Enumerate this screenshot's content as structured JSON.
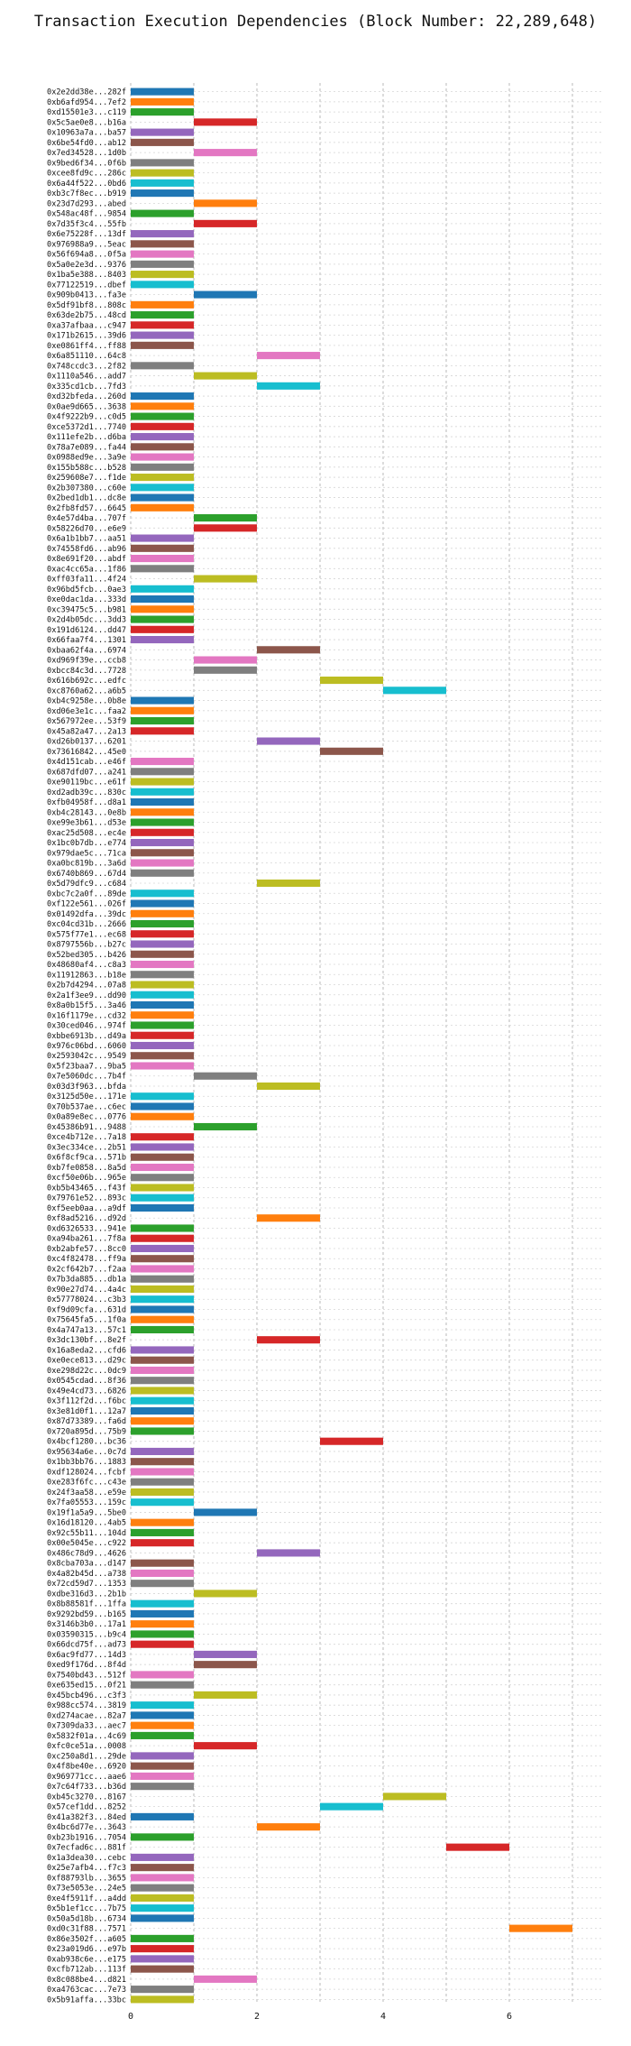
{
  "chart_data": {
    "type": "bar",
    "orientation": "horizontal",
    "title": "Transaction Execution Dependencies (Block Number: 22,289,648)",
    "xlabel": "",
    "ylabel": "",
    "xlim": [
      0,
      7.5
    ],
    "xticks": [
      "0",
      "2",
      "4",
      "6"
    ],
    "xtick_values": [
      0,
      2,
      4,
      6
    ],
    "grid": true,
    "palette": [
      "#1f77b4",
      "#ff7f0e",
      "#2ca02c",
      "#d62728",
      "#9467bd",
      "#8c564b",
      "#e377c2",
      "#7f7f7f",
      "#bcbd22",
      "#17becf"
    ],
    "transactions": [
      {
        "label": "0x2e2dd38e...282f",
        "start": 0
      },
      {
        "label": "0xb6afd954...7ef2",
        "start": 0
      },
      {
        "label": "0xd15501e3...c119",
        "start": 0
      },
      {
        "label": "0x5c5ae0e8...b16a",
        "start": 1
      },
      {
        "label": "0x10963a7a...ba57",
        "start": 0
      },
      {
        "label": "0x6be54fd0...ab12",
        "start": 0
      },
      {
        "label": "0x7ed34528...1d0b",
        "start": 1
      },
      {
        "label": "0x9bed6f34...0f6b",
        "start": 0
      },
      {
        "label": "0xcee8fd9c...286c",
        "start": 0
      },
      {
        "label": "0x6a44f522...0bd6",
        "start": 0
      },
      {
        "label": "0xb3c7f8ec...b919",
        "start": 0
      },
      {
        "label": "0x23d7d293...abed",
        "start": 1
      },
      {
        "label": "0x548ac48f...9854",
        "start": 0
      },
      {
        "label": "0x7d35f3c4...55fb",
        "start": 1
      },
      {
        "label": "0x6e75228f...13df",
        "start": 0
      },
      {
        "label": "0x976988a9...5eac",
        "start": 0
      },
      {
        "label": "0x56f694a8...0f5a",
        "start": 0
      },
      {
        "label": "0x5a0e2e3d...9376",
        "start": 0
      },
      {
        "label": "0x1ba5e388...8403",
        "start": 0
      },
      {
        "label": "0x77122519...dbef",
        "start": 0
      },
      {
        "label": "0x909b0413...fa3e",
        "start": 1
      },
      {
        "label": "0x5df91bf8...808c",
        "start": 0
      },
      {
        "label": "0x63de2b75...48cd",
        "start": 0
      },
      {
        "label": "0xa37afbaa...c947",
        "start": 0
      },
      {
        "label": "0x171b2615...39d6",
        "start": 0
      },
      {
        "label": "0xe0861ff4...ff88",
        "start": 0
      },
      {
        "label": "0x6a851110...64c8",
        "start": 2
      },
      {
        "label": "0x748ccdc3...2f82",
        "start": 0
      },
      {
        "label": "0x1110a546...add7",
        "start": 1
      },
      {
        "label": "0x335cd1cb...7fd3",
        "start": 2
      },
      {
        "label": "0xd32bfeda...260d",
        "start": 0
      },
      {
        "label": "0x0ae9d665...3638",
        "start": 0
      },
      {
        "label": "0x4f9222b9...c0d5",
        "start": 0
      },
      {
        "label": "0xce5372d1...7740",
        "start": 0
      },
      {
        "label": "0x111efe2b...d6ba",
        "start": 0
      },
      {
        "label": "0x78a7e089...fa44",
        "start": 0
      },
      {
        "label": "0x0988ed9e...3a9e",
        "start": 0
      },
      {
        "label": "0x155b588c...b528",
        "start": 0
      },
      {
        "label": "0x259608e7...f1de",
        "start": 0
      },
      {
        "label": "0x2b307380...c60e",
        "start": 0
      },
      {
        "label": "0x2bed1db1...dc8e",
        "start": 0
      },
      {
        "label": "0x2fb8fd57...6645",
        "start": 0
      },
      {
        "label": "0x4e57d4ba...707f",
        "start": 1
      },
      {
        "label": "0x58226d70...e6e9",
        "start": 1
      },
      {
        "label": "0x6a1b1bb7...aa51",
        "start": 0
      },
      {
        "label": "0x74558fd6...ab96",
        "start": 0
      },
      {
        "label": "0x8e691f20...abdf",
        "start": 0
      },
      {
        "label": "0xac4cc65a...1f86",
        "start": 0
      },
      {
        "label": "0xff03fa11...4f24",
        "start": 1
      },
      {
        "label": "0x96bd5fcb...0ae3",
        "start": 0
      },
      {
        "label": "0xe0dac1da...333d",
        "start": 0
      },
      {
        "label": "0xc39475c5...b981",
        "start": 0
      },
      {
        "label": "0x2d4b05dc...3dd3",
        "start": 0
      },
      {
        "label": "0x191d6124...dd47",
        "start": 0
      },
      {
        "label": "0x66faa7f4...1301",
        "start": 0
      },
      {
        "label": "0xbaa62f4a...6974",
        "start": 2
      },
      {
        "label": "0xd969f39e...ccb8",
        "start": 1
      },
      {
        "label": "0xbcc84c3d...7728",
        "start": 1
      },
      {
        "label": "0x616b692c...edfc",
        "start": 3
      },
      {
        "label": "0xc8760a62...a6b5",
        "start": 4
      },
      {
        "label": "0xb4c9258e...0b8e",
        "start": 0
      },
      {
        "label": "0xd06e3e1c...faa2",
        "start": 0
      },
      {
        "label": "0x567972ee...53f9",
        "start": 0
      },
      {
        "label": "0x45a82a47...2a13",
        "start": 0
      },
      {
        "label": "0xd26b0137...6201",
        "start": 2
      },
      {
        "label": "0x73616842...45e0",
        "start": 3
      },
      {
        "label": "0x4d151cab...e46f",
        "start": 0
      },
      {
        "label": "0x687dfd07...a241",
        "start": 0
      },
      {
        "label": "0xe90119bc...e61f",
        "start": 0
      },
      {
        "label": "0xd2adb39c...830c",
        "start": 0
      },
      {
        "label": "0xfb04958f...d8a1",
        "start": 0
      },
      {
        "label": "0xb4c28143...0e8b",
        "start": 0
      },
      {
        "label": "0xe99e3b61...d53e",
        "start": 0
      },
      {
        "label": "0xac25d508...ec4e",
        "start": 0
      },
      {
        "label": "0x1bc0b7db...e774",
        "start": 0
      },
      {
        "label": "0x979dae5c...71ca",
        "start": 0
      },
      {
        "label": "0xa0bc819b...3a6d",
        "start": 0
      },
      {
        "label": "0x6740b869...67d4",
        "start": 0
      },
      {
        "label": "0x5d79dfc9...c684",
        "start": 2
      },
      {
        "label": "0xbc7c2a0f...89de",
        "start": 0
      },
      {
        "label": "0xf122e561...026f",
        "start": 0
      },
      {
        "label": "0x01492dfa...39dc",
        "start": 0
      },
      {
        "label": "0xc04cd31b...2666",
        "start": 0
      },
      {
        "label": "0x575f77e1...ec68",
        "start": 0
      },
      {
        "label": "0x8797556b...b27c",
        "start": 0
      },
      {
        "label": "0x52bed305...b426",
        "start": 0
      },
      {
        "label": "0x48680af4...c8a3",
        "start": 0
      },
      {
        "label": "0x11912863...b18e",
        "start": 0
      },
      {
        "label": "0x2b7d4294...07a8",
        "start": 0
      },
      {
        "label": "0x2a1f3ee9...dd90",
        "start": 0
      },
      {
        "label": "0x8a0b15f5...3a46",
        "start": 0
      },
      {
        "label": "0x16f1179e...cd32",
        "start": 0
      },
      {
        "label": "0x30ced046...974f",
        "start": 0
      },
      {
        "label": "0xbbe6913b...d49a",
        "start": 0
      },
      {
        "label": "0x976c06bd...6060",
        "start": 0
      },
      {
        "label": "0x2593042c...9549",
        "start": 0
      },
      {
        "label": "0x5f23baa7...9ba5",
        "start": 0
      },
      {
        "label": "0x7e5060dc...7b4f",
        "start": 1
      },
      {
        "label": "0x03d3f963...bfda",
        "start": 2
      },
      {
        "label": "0x3125d50e...171e",
        "start": 0
      },
      {
        "label": "0x70b537ae...c6ec",
        "start": 0
      },
      {
        "label": "0x0a89e8ec...0776",
        "start": 0
      },
      {
        "label": "0x45386b91...9488",
        "start": 1
      },
      {
        "label": "0xce4b712e...7a18",
        "start": 0
      },
      {
        "label": "0x3ec334ce...2b51",
        "start": 0
      },
      {
        "label": "0x6f8cf9ca...571b",
        "start": 0
      },
      {
        "label": "0xb7fe0858...8a5d",
        "start": 0
      },
      {
        "label": "0xcf50e06b...965e",
        "start": 0
      },
      {
        "label": "0xb5b43465...f43f",
        "start": 0
      },
      {
        "label": "0x79761e52...893c",
        "start": 0
      },
      {
        "label": "0xf5eeb0aa...a9df",
        "start": 0
      },
      {
        "label": "0xf8ad5216...d92d",
        "start": 2
      },
      {
        "label": "0xd6326533...941e",
        "start": 0
      },
      {
        "label": "0xa94ba261...7f8a",
        "start": 0
      },
      {
        "label": "0xb2abfe57...8cc0",
        "start": 0
      },
      {
        "label": "0xc4f82478...ff9a",
        "start": 0
      },
      {
        "label": "0x2cf642b7...f2aa",
        "start": 0
      },
      {
        "label": "0x7b3da885...db1a",
        "start": 0
      },
      {
        "label": "0x90e27d74...4a4c",
        "start": 0
      },
      {
        "label": "0x57778024...c3b3",
        "start": 0
      },
      {
        "label": "0xf9d09cfa...631d",
        "start": 0
      },
      {
        "label": "0x75645fa5...1f0a",
        "start": 0
      },
      {
        "label": "0x4a747a13...57c1",
        "start": 0
      },
      {
        "label": "0x3dc130bf...8e2f",
        "start": 2
      },
      {
        "label": "0x16a8eda2...cfd6",
        "start": 0
      },
      {
        "label": "0xe0ece813...d29c",
        "start": 0
      },
      {
        "label": "0xe298d22c...0dc9",
        "start": 0
      },
      {
        "label": "0x0545cdad...8f36",
        "start": 0
      },
      {
        "label": "0x49e4cd73...6826",
        "start": 0
      },
      {
        "label": "0x3f112f2d...f6bc",
        "start": 0
      },
      {
        "label": "0x3e81d0f1...12a7",
        "start": 0
      },
      {
        "label": "0x87d73389...fa6d",
        "start": 0
      },
      {
        "label": "0x720a895d...75b9",
        "start": 0
      },
      {
        "label": "0x4bcf1280...bc36",
        "start": 3
      },
      {
        "label": "0x95634a6e...0c7d",
        "start": 0
      },
      {
        "label": "0x1bb3bb76...1883",
        "start": 0
      },
      {
        "label": "0xdf128024...fcbf",
        "start": 0
      },
      {
        "label": "0xe283f6fc...c43e",
        "start": 0
      },
      {
        "label": "0x24f3aa58...e59e",
        "start": 0
      },
      {
        "label": "0x7fa05553...159c",
        "start": 0
      },
      {
        "label": "0x19f1a5a9...5be0",
        "start": 1
      },
      {
        "label": "0x16d18120...4ab5",
        "start": 0
      },
      {
        "label": "0x92c55b11...104d",
        "start": 0
      },
      {
        "label": "0x00e5045e...c922",
        "start": 0
      },
      {
        "label": "0x486c78d9...4626",
        "start": 2
      },
      {
        "label": "0x8cba703a...d147",
        "start": 0
      },
      {
        "label": "0x4a82b45d...a738",
        "start": 0
      },
      {
        "label": "0x72cd59d7...1353",
        "start": 0
      },
      {
        "label": "0xdbe316d3...2b1b",
        "start": 1
      },
      {
        "label": "0x8b88581f...1ffa",
        "start": 0
      },
      {
        "label": "0x9292bd59...b165",
        "start": 0
      },
      {
        "label": "0x3146b3b0...17a1",
        "start": 0
      },
      {
        "label": "0x03590315...b9c4",
        "start": 0
      },
      {
        "label": "0x66dcd75f...ad73",
        "start": 0
      },
      {
        "label": "0x6ac9fd77...14d3",
        "start": 1
      },
      {
        "label": "0xed9f176d...8f4d",
        "start": 1
      },
      {
        "label": "0x7540bd43...512f",
        "start": 0
      },
      {
        "label": "0xe635ed15...0f21",
        "start": 0
      },
      {
        "label": "0x45bcb496...c3f3",
        "start": 1
      },
      {
        "label": "0x988cc574...3819",
        "start": 0
      },
      {
        "label": "0xd274acae...82a7",
        "start": 0
      },
      {
        "label": "0x7309da33...aec7",
        "start": 0
      },
      {
        "label": "0x5832f01a...4c69",
        "start": 0
      },
      {
        "label": "0xfc0ce51a...0008",
        "start": 1
      },
      {
        "label": "0xc250a8d1...29de",
        "start": 0
      },
      {
        "label": "0x4f8be40e...6920",
        "start": 0
      },
      {
        "label": "0x969771cc...aae6",
        "start": 0
      },
      {
        "label": "0x7c64f733...b36d",
        "start": 0
      },
      {
        "label": "0xb45c3270...8167",
        "start": 4
      },
      {
        "label": "0x57cef1dd...8252",
        "start": 3
      },
      {
        "label": "0x41a382f3...84ed",
        "start": 0
      },
      {
        "label": "0x4bc6d77e...3643",
        "start": 2
      },
      {
        "label": "0xb23b1916...7054",
        "start": 0
      },
      {
        "label": "0x7ecfad6c...881f",
        "start": 5
      },
      {
        "label": "0x1a3dea30...cebc",
        "start": 0
      },
      {
        "label": "0x25e7afb4...f7c3",
        "start": 0
      },
      {
        "label": "0xf88793lb...3655",
        "start": 0
      },
      {
        "label": "0x73e5053e...24e5",
        "start": 0
      },
      {
        "label": "0xe4f5911f...a4dd",
        "start": 0
      },
      {
        "label": "0x5b1ef1cc...7b75",
        "start": 0
      },
      {
        "label": "0x50a5d18b...6734",
        "start": 0
      },
      {
        "label": "0xd0c31f88...7571",
        "start": 6
      },
      {
        "label": "0x86e3502f...a605",
        "start": 0
      },
      {
        "label": "0x23a019d6...e97b",
        "start": 0
      },
      {
        "label": "0xab938c6e...e175",
        "start": 0
      },
      {
        "label": "0xcfb712ab...113f",
        "start": 0
      },
      {
        "label": "0x8c088be4...d821",
        "start": 1
      },
      {
        "label": "0xa4763cac...7e73",
        "start": 0
      },
      {
        "label": "0x5b91affa...33bc",
        "start": 0
      }
    ]
  }
}
